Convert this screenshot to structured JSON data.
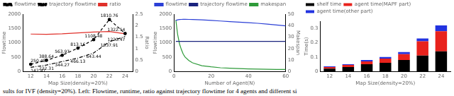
{
  "caption": "sults for IVF (density=20%). Left: Flowtime, runtime, ratio against trajectory flowtime for 4 agents and different si",
  "chart_data": [
    {
      "type": "line",
      "xlabel": "Map Size(density=20%)",
      "ylabel": "Flowtime",
      "y2label": "Ratio",
      "x": [
        12,
        14,
        16,
        18,
        20,
        22,
        24
      ],
      "series": [
        {
          "name": "flowtime",
          "color": "#000000",
          "line_style": "dashed",
          "marker": "circle",
          "data_labels": true,
          "values": [
            250.48,
            388.64,
            563.97,
            813.16,
            1108.48,
            1810.76,
            1322.54
          ]
        },
        {
          "name": "trajectory flowtime",
          "color": "#000000",
          "line_style": "dashdot",
          "marker": "none",
          "data_labels": true,
          "values": [
            142.47,
            222.31,
            344.27,
            466.13,
            643.44,
            1037.91,
            1220.47
          ]
        },
        {
          "name": "ratio",
          "color": "#e0302a",
          "line_style": "solid",
          "marker": "none",
          "axis": "y2",
          "values": [
            1.63,
            1.62,
            1.64,
            1.68,
            1.72,
            1.74,
            1.64
          ]
        }
      ],
      "xlim": [
        11,
        25
      ],
      "xticks": [
        12,
        14,
        16,
        18,
        20,
        22,
        24
      ],
      "ylim": [
        0,
        2000
      ],
      "yticks": [
        0,
        500,
        1000,
        1500,
        2000
      ],
      "y2lim": [
        0,
        2.5
      ],
      "y2ticks": [
        0,
        0.5,
        1,
        1.5,
        2,
        2.5
      ],
      "legend": "upper left",
      "grid": false
    },
    {
      "type": "line",
      "xlabel": "Number of Agent(N)",
      "ylabel": "Flowtime",
      "y2label": "Makespan",
      "x": [
        1,
        2,
        3,
        4,
        5,
        6,
        8,
        10,
        15,
        20,
        25,
        30,
        35,
        40,
        45,
        50,
        55,
        60
      ],
      "series": [
        {
          "name": "flowtime",
          "color": "#2b3fd6",
          "line_style": "solid",
          "marker": "none",
          "values": [
            1780,
            1800,
            1810,
            1815,
            1820,
            1820,
            1815,
            1810,
            1800,
            1780,
            1760,
            1740,
            1720,
            1700,
            1680,
            1650,
            1620,
            1590
          ]
        },
        {
          "name": "trajectory flowtime",
          "color": "#1a237e",
          "line_style": "solid",
          "marker": "none",
          "values": [
            1050,
            1050,
            1050,
            1050,
            1050,
            1050,
            1050,
            1050,
            1050,
            1050,
            1050,
            1050,
            1050,
            1050,
            1050,
            1050,
            1050,
            1050
          ]
        },
        {
          "name": "makespan",
          "color": "#2e9b3a",
          "line_style": "solid",
          "marker": "none",
          "axis": "y2",
          "values": [
            45,
            32,
            24,
            19,
            15,
            12.5,
            9.5,
            7.5,
            5,
            4,
            3.2,
            2.8,
            2.5,
            2.2,
            2,
            1.9,
            1.8,
            1.7
          ]
        }
      ],
      "xlim": [
        0,
        60
      ],
      "xticks": [
        0,
        20,
        40,
        60
      ],
      "ylim": [
        0,
        2000
      ],
      "yticks": [
        0,
        500,
        1000,
        1500,
        2000
      ],
      "y2lim": [
        0,
        50
      ],
      "y2ticks": [
        0,
        10,
        20,
        30,
        40,
        50
      ],
      "legend": "upper left",
      "grid": false
    },
    {
      "type": "bar",
      "xlabel": "Map Size(density=20%)",
      "ylabel": "Time(s)",
      "categories": [
        "12",
        "14",
        "16",
        "18",
        "20",
        "22",
        "24"
      ],
      "series": [
        {
          "name": "shelf time",
          "color": "#000000",
          "values": [
            0.02,
            0.03,
            0.05,
            0.06,
            0.08,
            0.11,
            0.14
          ]
        },
        {
          "name": "agent time(MAPF part)",
          "color": "#e8221c",
          "values": [
            0.01,
            0.015,
            0.02,
            0.03,
            0.04,
            0.1,
            0.14
          ]
        },
        {
          "name": "agent time(other part)",
          "color": "#2233e0",
          "values": [
            0.005,
            0.005,
            0.01,
            0.01,
            0.015,
            0.02,
            0.04
          ]
        }
      ],
      "ylim": [
        0,
        0.35
      ],
      "yticks": [
        0,
        0.1,
        0.2,
        0.3
      ],
      "stacked": true,
      "legend": "upper left",
      "grid": false
    }
  ]
}
